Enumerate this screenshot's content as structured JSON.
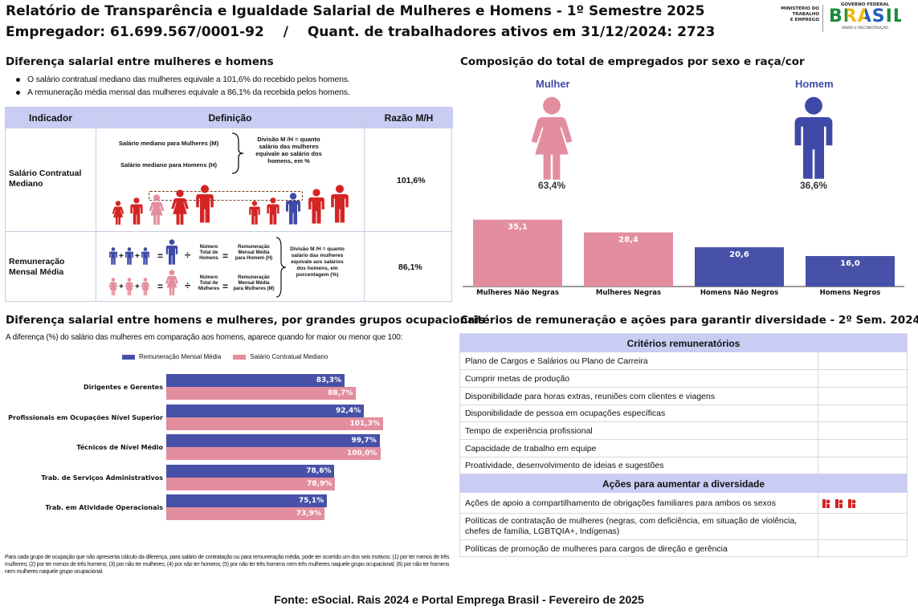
{
  "header": {
    "title_line1": "Relatório de Transparência e Igualdade Salarial de Mulheres e Homens - 1º Semestre 2025",
    "employer_label": "Empregador: 61.699.567/0001-92",
    "separator": "/",
    "workers_label": "Quant. de trabalhadores ativos em 31/12/2024: 2723",
    "ministry_line1": "MINISTÉRIO DO",
    "ministry_line2": "TRABALHO",
    "ministry_line3": "E EMPREGO",
    "gov_top": "GOVERNO FEDERAL",
    "gov_name": "BRASIL",
    "gov_slogan": "UNIÃO E RECONSTRUÇÃO"
  },
  "salary_gap": {
    "title": "Diferença salarial entre mulheres e homens",
    "bullets": [
      "O salário contratual mediano das mulheres equivale a 101,6% do recebido pelos homens.",
      "A remuneração média mensal das mulheres equivale a 86,1% da recebida pelos homens."
    ],
    "table": {
      "headers": [
        "Indicador",
        "Definição",
        "Razão M/H"
      ],
      "rows": [
        {
          "indicator": "Salário Contratual Mediano",
          "def_women": "Salário mediano para Mulheres (M)",
          "def_men": "Salário mediano para Homens (H)",
          "def_division": "Divisão M /H = quanto salário das mulheres equivale ao salário dos homens, em %",
          "ratio": "101,6%"
        },
        {
          "indicator": "Remuneração Mensal Média",
          "op_div": "÷",
          "op_eq": "=",
          "op_plus": "+",
          "total_men": "Número Total de Homens",
          "avg_men": "Remuneração Mensal Média para Homem (H)",
          "total_women": "Número Total de Mulheres",
          "avg_women": "Remuneração Mensal Média para Mulheres (M)",
          "def_division": "Divisão M /H = quanto salário das mulheres equivale aos salários dos homens, em porcentagem (%)",
          "ratio": "86,1%"
        }
      ]
    }
  },
  "composition": {
    "title": "Composição do total de empregados por sexo e raça/cor",
    "women_label": "Mulher",
    "men_label": "Homem",
    "women_pct": "63,4%",
    "men_pct": "36,6%",
    "colors": {
      "women": "#e38e9f",
      "men": "#3f4aa8"
    },
    "chart_data": {
      "type": "bar",
      "categories": [
        "Mulheres Não Negras",
        "Mulheres Negras",
        "Homens Não Negros",
        "Homens Negros"
      ],
      "values": [
        35.1,
        28.4,
        20.6,
        16.0
      ],
      "value_labels": [
        "35,1",
        "28,4",
        "20,6",
        "16,0"
      ],
      "ylim": [
        0,
        40
      ]
    }
  },
  "occupations": {
    "title": "Diferença salarial entre homens e mulheres, por grandes grupos ocupacionais",
    "subtitle": "A diferença (%) do salário das mulheres em comparação aos homens, aparece quando for maior ou menor que 100:",
    "legend": [
      "Remuneração Mensal Média",
      "Salário Contratual Mediano"
    ],
    "chart_data": {
      "type": "bar",
      "orientation": "horizontal",
      "categories": [
        "Dirigentes e Gerentes",
        "Profissionais em Ocupações Nível Superior",
        "Técnicos de Nível Médio",
        "Trab. de Serviços Administrativos",
        "Trab. em Atividade Operacionais"
      ],
      "series": [
        {
          "name": "Remuneração Mensal Média",
          "values": [
            83.3,
            92.4,
            99.7,
            78.6,
            75.1
          ],
          "labels": [
            "83,3%",
            "92,4%",
            "99,7%",
            "78,6%",
            "75,1%"
          ],
          "color": "#4651a7"
        },
        {
          "name": "Salário Contratual Mediano",
          "values": [
            88.7,
            101.3,
            100.0,
            78.9,
            73.9
          ],
          "labels": [
            "88,7%",
            "101,3%",
            "100,0%",
            "78,9%",
            "73,9%"
          ],
          "color": "#e38e9f"
        }
      ],
      "xlim": [
        0,
        105
      ]
    },
    "footnote": "Para cada grupo de ocupação que não apresenta cálculo da diferença, para salário de contratação ou para remuneração média, pode ter ocorrido um dos seis motivos: (1) por ter menos de três mulheres; (2) por ter menos de três homens; (3) por não ter mulheres; (4) por não ter homens; (5) por não ter três homens nem três mulheres naquele grupo ocupacional; (6) por não ter homens nem mulheres naquele grupo ocupacional."
  },
  "criteria": {
    "title": "Critérios de remuneração e ações para garantir diversidade - 2º Sem. 2024",
    "remuneration_header": "Critérios remuneratórios",
    "remuneration_items": [
      "Plano de Cargos e Salários ou Plano de Carreira",
      "Cumprir metas de produção",
      "Disponibilidade para horas extras, reuniões com clientes e viagens",
      "Disponibilidade de pessoa em ocupações específicas",
      "Tempo de experiência profissional",
      "Capacidade de trabalho em equipe",
      "Proatividade, desenvolvimento de ideias e sugestões"
    ],
    "actions_header": "Ações para aumentar a diversidade",
    "action_items": [
      "Ações de apoio a compartilhamento de obrigações familiares para ambos os sexos",
      "Políticas de contratação de mulheres (negras, com deficiência, em situação de violência, chefes de família, LGBTQIA+, Indígenas)",
      "Políticas de promoção de mulheres para cargos de direção e gerência"
    ]
  },
  "footer": {
    "source": "Fonte: eSocial. Rais 2024 e Portal Emprega Brasil - Fevereiro de 2025"
  }
}
